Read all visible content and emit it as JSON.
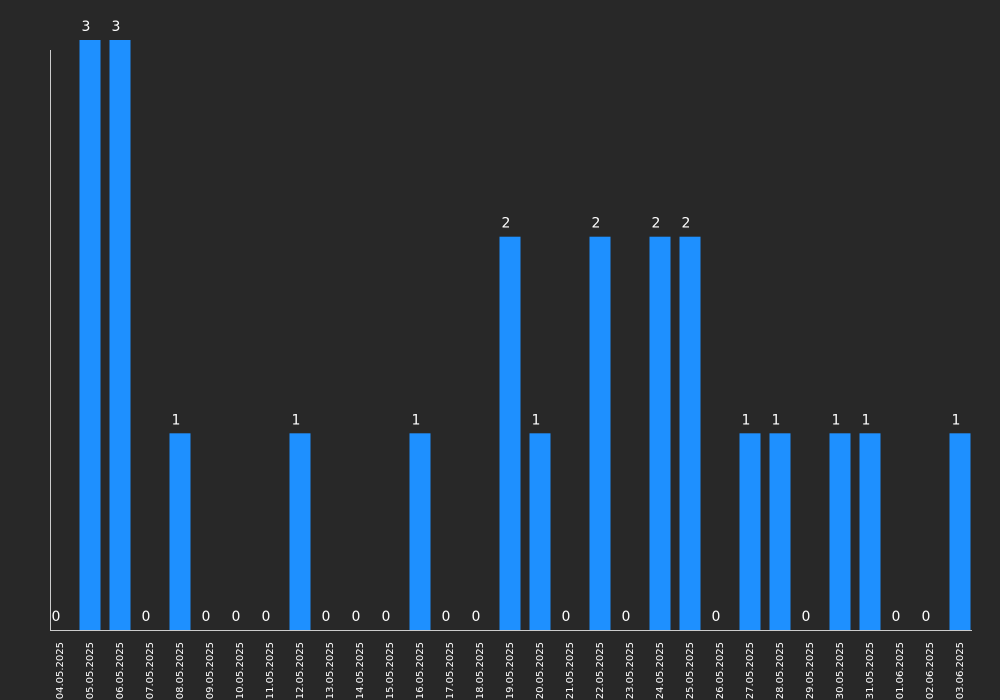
{
  "chart_data": {
    "type": "bar",
    "categories": [
      "04.05.2025",
      "05.05.2025",
      "06.05.2025",
      "07.05.2025",
      "08.05.2025",
      "09.05.2025",
      "10.05.2025",
      "11.05.2025",
      "12.05.2025",
      "13.05.2025",
      "14.05.2025",
      "15.05.2025",
      "16.05.2025",
      "17.05.2025",
      "18.05.2025",
      "19.05.2025",
      "20.05.2025",
      "21.05.2025",
      "22.05.2025",
      "23.05.2025",
      "24.05.2025",
      "25.05.2025",
      "26.05.2025",
      "27.05.2025",
      "28.05.2025",
      "29.05.2025",
      "30.05.2025",
      "31.05.2025",
      "01.06.2025",
      "02.06.2025",
      "03.06.2025"
    ],
    "values": [
      0,
      3,
      3,
      0,
      1,
      0,
      0,
      0,
      1,
      0,
      0,
      0,
      1,
      0,
      0,
      2,
      1,
      0,
      2,
      0,
      2,
      2,
      0,
      1,
      1,
      0,
      1,
      1,
      0,
      0,
      1
    ],
    "ylim": [
      0,
      3
    ],
    "grid": false,
    "data_labels": true,
    "colors": {
      "background": "#282828",
      "bar": "#1e90ff",
      "text": "#ffffff",
      "axis": "#cccccc"
    }
  }
}
